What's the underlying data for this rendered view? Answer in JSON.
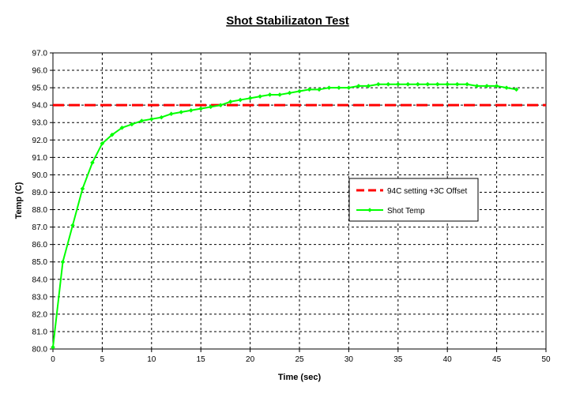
{
  "chart_data": {
    "type": "line",
    "title": "Shot Stabilizaton Test",
    "xlabel": "Time (sec)",
    "ylabel": "Temp (C)",
    "xlim": [
      0,
      50
    ],
    "ylim": [
      80.0,
      97.0
    ],
    "xticks": [
      0,
      5,
      10,
      15,
      20,
      25,
      30,
      35,
      40,
      45,
      50
    ],
    "xtick_labels": [
      "0",
      "5",
      "10",
      "15",
      "20",
      "25",
      "30",
      "35",
      "40",
      "45",
      "50"
    ],
    "yticks": [
      80,
      81,
      82,
      83,
      84,
      85,
      86,
      87,
      88,
      89,
      90,
      91,
      92,
      93,
      94,
      95,
      96,
      97
    ],
    "ytick_labels": [
      "80.0",
      "81.0",
      "82.0",
      "83.0",
      "84.0",
      "85.0",
      "86.0",
      "87.0",
      "88.0",
      "89.0",
      "90.0",
      "91.0",
      "92.0",
      "93.0",
      "94.0",
      "95.0",
      "96.0",
      "97.0"
    ],
    "grid": true,
    "legend_position": "right-middle",
    "series": [
      {
        "name": "94C setting +3C Offset",
        "color": "#ff0000",
        "style": "dashed",
        "x": [
          0,
          50
        ],
        "y": [
          94.0,
          94.0
        ]
      },
      {
        "name": "Shot Temp",
        "color": "#00ff00",
        "style": "solid-markers",
        "x": [
          0,
          1,
          2,
          3,
          4,
          5,
          6,
          7,
          8,
          9,
          10,
          11,
          12,
          13,
          14,
          15,
          16,
          17,
          18,
          19,
          20,
          21,
          22,
          23,
          24,
          25,
          26,
          27,
          28,
          29,
          30,
          31,
          32,
          33,
          34,
          35,
          36,
          37,
          38,
          39,
          40,
          41,
          42,
          43,
          44,
          45,
          46,
          47
        ],
        "y": [
          80.1,
          85.0,
          87.1,
          89.2,
          90.7,
          91.8,
          92.3,
          92.7,
          92.9,
          93.1,
          93.2,
          93.3,
          93.5,
          93.6,
          93.7,
          93.8,
          93.9,
          94.0,
          94.2,
          94.3,
          94.4,
          94.5,
          94.6,
          94.6,
          94.7,
          94.8,
          94.9,
          94.9,
          95.0,
          95.0,
          95.0,
          95.1,
          95.1,
          95.2,
          95.2,
          95.2,
          95.2,
          95.2,
          95.2,
          95.2,
          95.2,
          95.2,
          95.2,
          95.1,
          95.1,
          95.1,
          95.0,
          94.9
        ]
      }
    ]
  }
}
